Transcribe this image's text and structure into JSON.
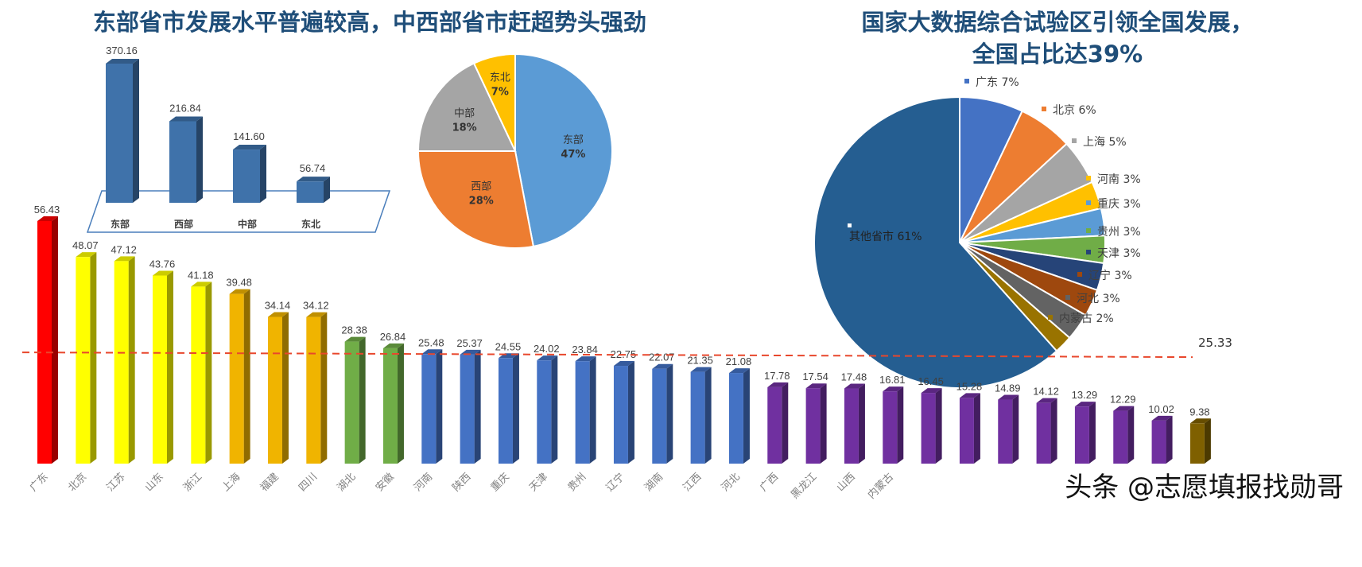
{
  "titles": {
    "left": "东部省市发展水平普遍较高，中西部省市赶超势头强劲",
    "right_line1": "国家大数据综合试验区引领全国发展，",
    "right_line2": "全国占比达39%"
  },
  "watermark": "头条 @志愿填报找勋哥",
  "chart_data": [
    {
      "type": "bar",
      "categories": [
        "东部",
        "西部",
        "中部",
        "东北"
      ],
      "values": [
        370.16,
        216.84,
        141.6,
        56.74
      ],
      "labels": [
        "370.16",
        "216.84",
        "141.60",
        "56.74"
      ],
      "color": "#3f72aa"
    },
    {
      "type": "pie",
      "slices": [
        {
          "name": "东部",
          "value": 47,
          "label": "47%",
          "color": "#5b9bd5"
        },
        {
          "name": "西部",
          "value": 28,
          "label": "28%",
          "color": "#ed7d31"
        },
        {
          "name": "中部",
          "value": 18,
          "label": "18%",
          "color": "#a5a5a5"
        },
        {
          "name": "东北",
          "value": 7,
          "label": "7%",
          "color": "#ffc000"
        }
      ]
    },
    {
      "type": "pie",
      "slices": [
        {
          "name": "广东 7%",
          "value": 7,
          "color": "#4472c4"
        },
        {
          "name": "北京 6%",
          "value": 6,
          "color": "#ed7d31"
        },
        {
          "name": "上海 5%",
          "value": 5,
          "color": "#a5a5a5"
        },
        {
          "name": "河南 3%",
          "value": 3,
          "color": "#ffc000"
        },
        {
          "name": "重庆 3%",
          "value": 3,
          "color": "#5b9bd5"
        },
        {
          "name": "贵州 3%",
          "value": 3,
          "color": "#70ad47"
        },
        {
          "name": "天津 3%",
          "value": 3,
          "color": "#264478"
        },
        {
          "name": "辽宁 3%",
          "value": 3,
          "color": "#9e480e"
        },
        {
          "name": "河北 3%",
          "value": 3,
          "color": "#636363"
        },
        {
          "name": "内蒙古 2%",
          "value": 2,
          "color": "#997300"
        },
        {
          "name": "其他省市 61%",
          "value": 61,
          "color": "#255e91"
        }
      ]
    },
    {
      "type": "bar",
      "categories": [
        "广东",
        "北京",
        "江苏",
        "山东",
        "浙江",
        "上海",
        "福建",
        "四川",
        "湖北",
        "安徽",
        "河南",
        "陕西",
        "重庆",
        "天津",
        "贵州",
        "辽宁",
        "湖南",
        "江西",
        "河北",
        "广西",
        "黑龙江",
        "山西",
        "内蒙古",
        "",
        "",
        "",
        "",
        "",
        "",
        "",
        ""
      ],
      "values": [
        56.43,
        48.07,
        47.12,
        43.76,
        41.18,
        39.48,
        34.14,
        34.12,
        28.38,
        26.84,
        25.48,
        25.37,
        24.55,
        24.02,
        23.84,
        22.75,
        22.07,
        21.35,
        21.08,
        17.78,
        17.54,
        17.48,
        16.81,
        16.45,
        15.28,
        14.89,
        14.12,
        13.29,
        12.29,
        10.02,
        9.38
      ],
      "labels": [
        "56.43",
        "48.07",
        "47.12",
        "43.76",
        "41.18",
        "39.48",
        "34.14",
        "34.12",
        "28.38",
        "26.84",
        "25.48",
        "25.37",
        "24.55",
        "24.02",
        "23.84",
        "22.75",
        "22.07",
        "21.35",
        "21.08",
        "17.78",
        "17.54",
        "17.48",
        "16.81",
        "16.45",
        "15.28",
        "14.89",
        "14.12",
        "13.29",
        "12.29",
        "10.02",
        "9.38"
      ],
      "colors": [
        "#ff0000",
        "#ffff00",
        "#ffff00",
        "#ffff00",
        "#ffff00",
        "#f0b400",
        "#f0b400",
        "#f0b400",
        "#70ad47",
        "#70ad47",
        "#4472c4",
        "#4472c4",
        "#4472c4",
        "#4472c4",
        "#4472c4",
        "#4472c4",
        "#4472c4",
        "#4472c4",
        "#4472c4",
        "#7030a0",
        "#7030a0",
        "#7030a0",
        "#7030a0",
        "#7030a0",
        "#7030a0",
        "#7030a0",
        "#7030a0",
        "#7030a0",
        "#7030a0",
        "#7030a0",
        "#7f6000"
      ],
      "reference_line": {
        "value": 25.33,
        "label": "25.33",
        "color": "#e8472c"
      }
    }
  ]
}
